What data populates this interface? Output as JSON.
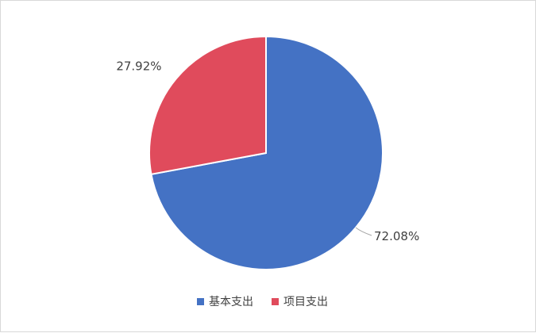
{
  "chart_data": {
    "type": "pie",
    "title": "",
    "categories": [
      "基本支出",
      "项目支出"
    ],
    "values": [
      72.08,
      27.92
    ],
    "data_labels": [
      "72.08%",
      "27.92%"
    ],
    "colors": [
      "#4472c4",
      "#e04b5c"
    ],
    "legend_position": "bottom"
  }
}
